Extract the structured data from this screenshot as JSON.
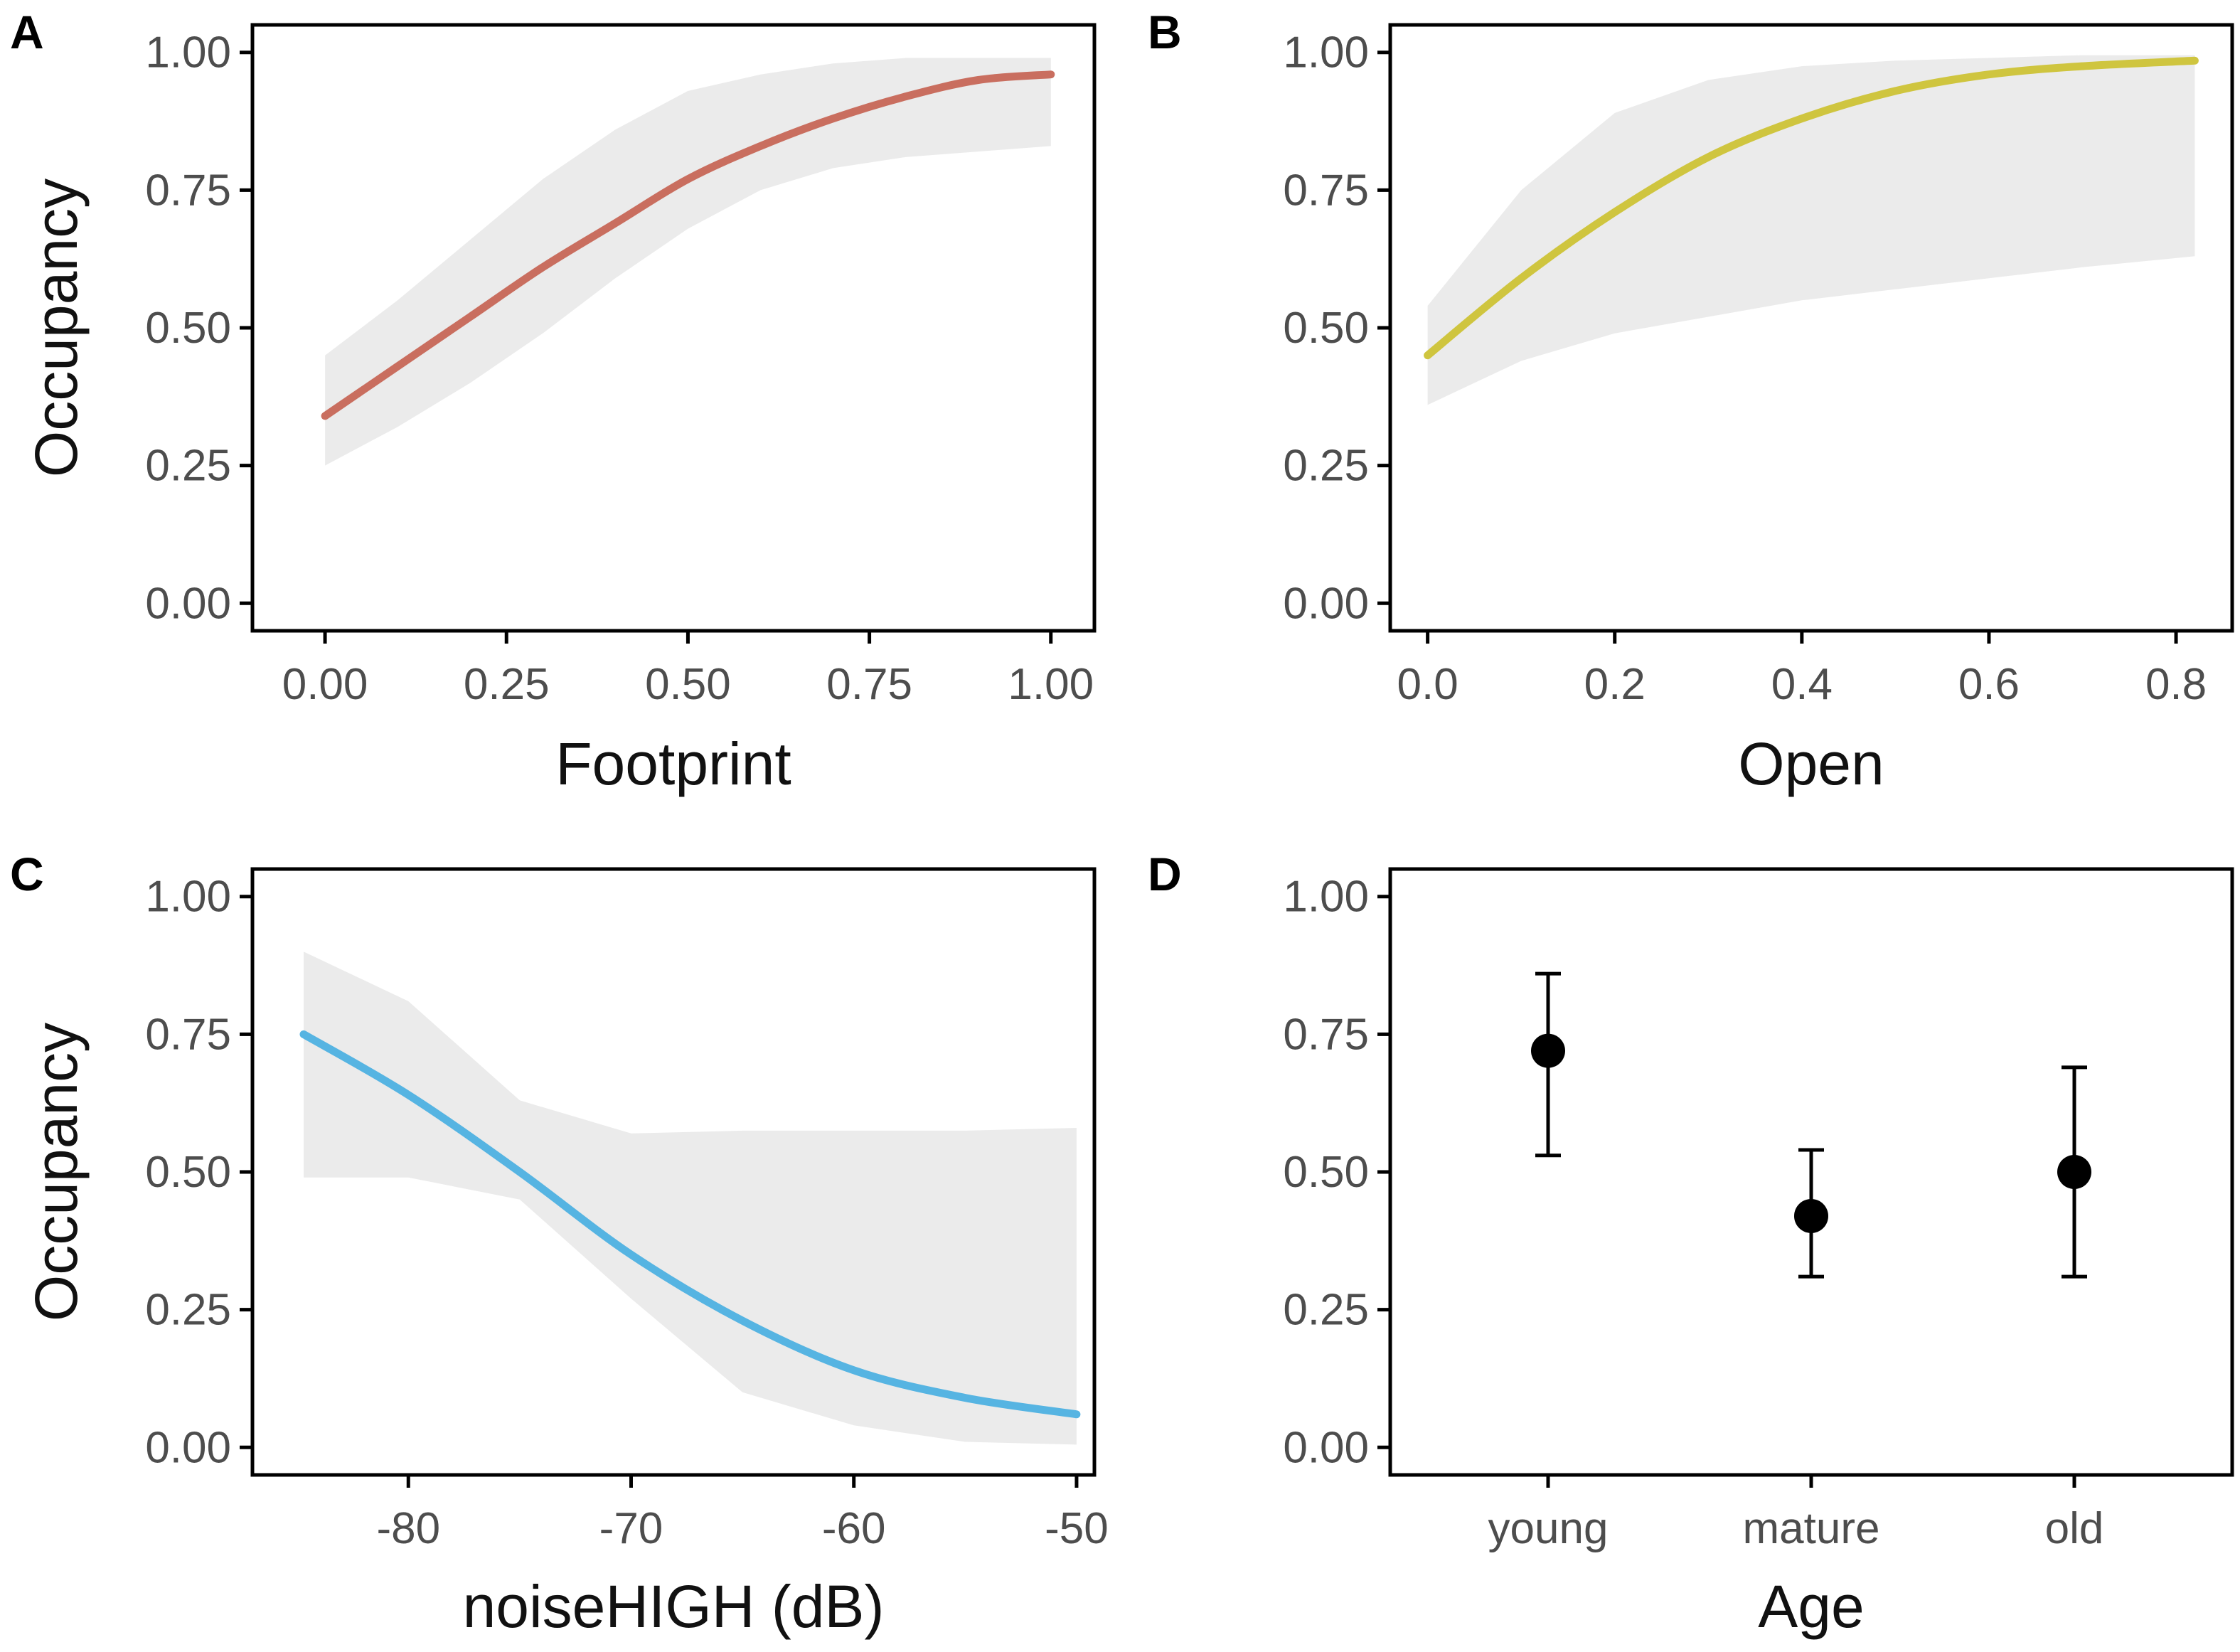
{
  "chart_data": [
    {
      "panel": "A",
      "type": "line",
      "xlabel": "Footprint",
      "ylabel": "Occupancy",
      "xlim": [
        -0.1,
        1.06
      ],
      "ylim": [
        -0.05,
        1.05
      ],
      "xticks": [
        0,
        0.25,
        0.5,
        0.75,
        1
      ],
      "xtick_labels": [
        "0.00",
        "0.25",
        "0.50",
        "0.75",
        "1.00"
      ],
      "yticks": [
        0,
        0.25,
        0.5,
        0.75,
        1
      ],
      "ytick_labels": [
        "0.00",
        "0.25",
        "0.50",
        "0.75",
        "1.00"
      ],
      "color": "#c96e5f",
      "series": [
        {
          "name": "fit",
          "x": [
            0,
            0.1,
            0.2,
            0.3,
            0.4,
            0.5,
            0.6,
            0.7,
            0.8,
            0.9,
            1.0
          ],
          "y": [
            0.34,
            0.43,
            0.52,
            0.61,
            0.69,
            0.77,
            0.83,
            0.88,
            0.92,
            0.95,
            0.96
          ],
          "lower": [
            0.25,
            0.32,
            0.4,
            0.49,
            0.59,
            0.68,
            0.75,
            0.79,
            0.81,
            0.82,
            0.83
          ],
          "upper": [
            0.45,
            0.55,
            0.66,
            0.77,
            0.86,
            0.93,
            0.96,
            0.98,
            0.99,
            0.99,
            0.99
          ]
        }
      ]
    },
    {
      "panel": "B",
      "type": "line",
      "xlabel": "Open",
      "ylabel": "",
      "xlim": [
        -0.04,
        0.86
      ],
      "ylim": [
        -0.05,
        1.05
      ],
      "xticks": [
        0,
        0.2,
        0.4,
        0.6,
        0.8
      ],
      "xtick_labels": [
        "0.0",
        "0.2",
        "0.4",
        "0.6",
        "0.8"
      ],
      "yticks": [
        0,
        0.25,
        0.5,
        0.75,
        1
      ],
      "ytick_labels": [
        "0.00",
        "0.25",
        "0.50",
        "0.75",
        "1.00"
      ],
      "color": "#cfc53f",
      "series": [
        {
          "name": "fit",
          "x": [
            0,
            0.1,
            0.2,
            0.3,
            0.4,
            0.5,
            0.6,
            0.7,
            0.82
          ],
          "y": [
            0.45,
            0.59,
            0.71,
            0.81,
            0.88,
            0.93,
            0.96,
            0.975,
            0.985
          ],
          "lower": [
            0.36,
            0.44,
            0.49,
            0.52,
            0.55,
            0.57,
            0.59,
            0.61,
            0.63
          ],
          "upper": [
            0.54,
            0.75,
            0.89,
            0.95,
            0.975,
            0.985,
            0.99,
            0.995,
            0.995
          ]
        }
      ]
    },
    {
      "panel": "C",
      "type": "line",
      "xlabel": "noiseHIGH (dB)",
      "ylabel": "Occupancy",
      "xlim": [
        -87,
        -49.2
      ],
      "ylim": [
        -0.05,
        1.05
      ],
      "xticks": [
        -80,
        -70,
        -60,
        -50
      ],
      "xtick_labels": [
        "-80",
        "-70",
        "-60",
        "-50"
      ],
      "yticks": [
        0,
        0.25,
        0.5,
        0.75,
        1
      ],
      "ytick_labels": [
        "0.00",
        "0.25",
        "0.50",
        "0.75",
        "1.00"
      ],
      "color": "#56b4e2",
      "series": [
        {
          "name": "fit",
          "x": [
            -84.7,
            -80,
            -75,
            -70,
            -65,
            -60,
            -55,
            -50
          ],
          "y": [
            0.75,
            0.64,
            0.5,
            0.35,
            0.23,
            0.14,
            0.09,
            0.06
          ],
          "lower": [
            0.49,
            0.49,
            0.45,
            0.27,
            0.1,
            0.04,
            0.01,
            0.005
          ],
          "upper": [
            0.9,
            0.81,
            0.63,
            0.57,
            0.575,
            0.575,
            0.575,
            0.58
          ]
        }
      ]
    },
    {
      "panel": "D",
      "type": "scatter",
      "xlabel": "Age",
      "ylabel": "",
      "categories": [
        "young",
        "mature",
        "old"
      ],
      "ylim": [
        -0.05,
        1.05
      ],
      "yticks": [
        0,
        0.25,
        0.5,
        0.75,
        1
      ],
      "ytick_labels": [
        "0.00",
        "0.25",
        "0.50",
        "0.75",
        "1.00"
      ],
      "values": [
        0.72,
        0.42,
        0.5
      ],
      "lower": [
        0.53,
        0.31,
        0.31
      ],
      "upper": [
        0.86,
        0.54,
        0.69
      ]
    }
  ],
  "ribbon_color": "#ebebeb",
  "point_color": "#000000"
}
